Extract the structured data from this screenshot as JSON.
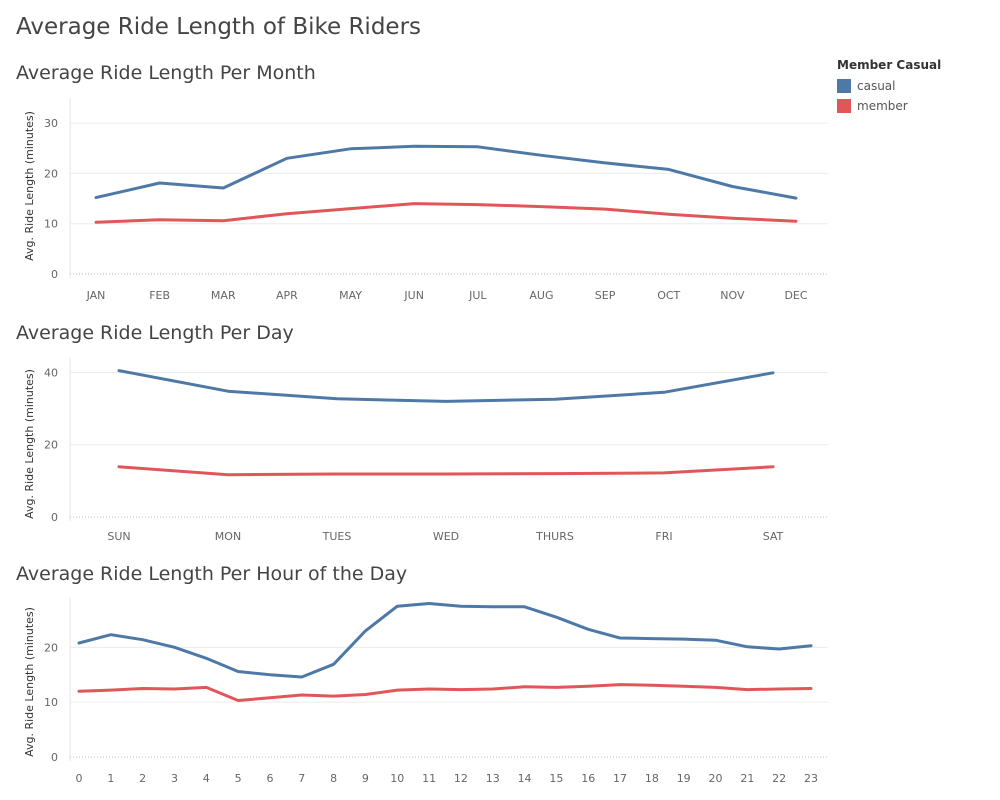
{
  "page": {
    "title": "Average Ride Length of Bike Riders"
  },
  "legend": {
    "title": "Member Casual",
    "items": [
      {
        "label": "casual",
        "color": "#4e79a7"
      },
      {
        "label": "member",
        "color": "#e15759"
      }
    ]
  },
  "chart_data": [
    {
      "type": "line",
      "title": "Average Ride Length Per Month",
      "ylabel": "Avg. Ride Length (minutes)",
      "xlabel": "",
      "categories": [
        "JAN",
        "FEB",
        "MAR",
        "APR",
        "MAY",
        "JUN",
        "JUL",
        "AUG",
        "SEP",
        "OCT",
        "NOV",
        "DEC"
      ],
      "ylim": [
        0,
        35
      ],
      "yticks": [
        0,
        10,
        20,
        30
      ],
      "series": [
        {
          "name": "casual",
          "values": [
            15.2,
            18.1,
            17.1,
            23.0,
            24.9,
            25.4,
            25.3,
            23.6,
            22.1,
            20.8,
            17.4,
            15.1
          ]
        },
        {
          "name": "member",
          "values": [
            10.3,
            10.8,
            10.6,
            12.0,
            13.0,
            14.0,
            13.8,
            13.4,
            12.9,
            11.9,
            11.1,
            10.5
          ]
        }
      ]
    },
    {
      "type": "line",
      "title": "Average Ride Length Per Day",
      "ylabel": "Avg. Ride Length (minutes)",
      "xlabel": "",
      "categories": [
        "SUN",
        "MON",
        "TUES",
        "WED",
        "THURS",
        "FRI",
        "SAT"
      ],
      "ylim": [
        0,
        44
      ],
      "yticks": [
        0,
        20,
        40
      ],
      "series": [
        {
          "name": "casual",
          "values": [
            40.5,
            34.8,
            32.7,
            32.0,
            32.6,
            34.5,
            39.9
          ]
        },
        {
          "name": "member",
          "values": [
            13.9,
            11.7,
            11.9,
            11.9,
            12.0,
            12.2,
            13.9
          ]
        }
      ]
    },
    {
      "type": "line",
      "title": "Average Ride Length Per Hour of the Day",
      "ylabel": "Avg. Ride Length (minutes)",
      "xlabel": "",
      "categories": [
        "0",
        "1",
        "2",
        "3",
        "4",
        "5",
        "6",
        "7",
        "8",
        "9",
        "10",
        "11",
        "12",
        "13",
        "14",
        "15",
        "16",
        "17",
        "18",
        "19",
        "20",
        "21",
        "22",
        "23"
      ],
      "ylim": [
        0,
        29
      ],
      "yticks": [
        0,
        10,
        20
      ],
      "series": [
        {
          "name": "casual",
          "values": [
            20.8,
            22.3,
            21.4,
            20.0,
            18.0,
            15.6,
            15.0,
            14.6,
            16.9,
            23.0,
            27.5,
            28.0,
            27.5,
            27.4,
            27.4,
            25.5,
            23.3,
            21.7,
            21.6,
            21.5,
            21.3,
            20.1,
            19.7,
            20.3
          ]
        },
        {
          "name": "member",
          "values": [
            12.0,
            12.2,
            12.5,
            12.4,
            12.7,
            10.3,
            10.8,
            11.3,
            11.1,
            11.4,
            12.2,
            12.4,
            12.3,
            12.4,
            12.8,
            12.7,
            12.9,
            13.2,
            13.1,
            12.9,
            12.7,
            12.3,
            12.4,
            12.5
          ]
        }
      ]
    }
  ]
}
